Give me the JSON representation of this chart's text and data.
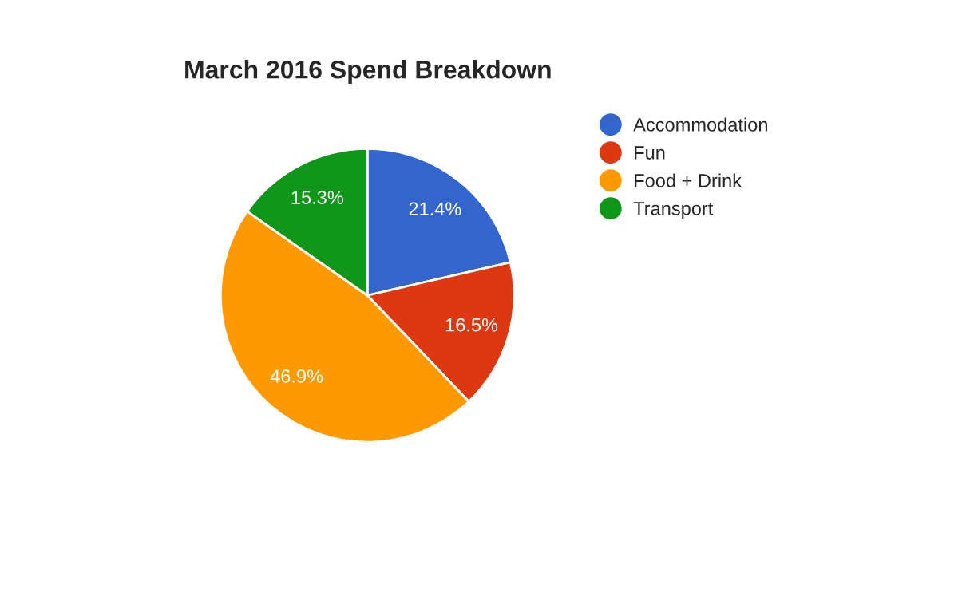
{
  "chart_data": {
    "type": "pie",
    "title": "March 2016 Spend Breakdown",
    "categories": [
      "Accommodation",
      "Fun",
      "Food + Drink",
      "Transport"
    ],
    "values": [
      21.4,
      16.5,
      46.9,
      15.3
    ],
    "value_labels": [
      "21.4%",
      "16.5%",
      "46.9%",
      "15.3%"
    ],
    "colors": [
      "#3366cc",
      "#dc3912",
      "#ff9900",
      "#109618"
    ],
    "legend": "right"
  }
}
